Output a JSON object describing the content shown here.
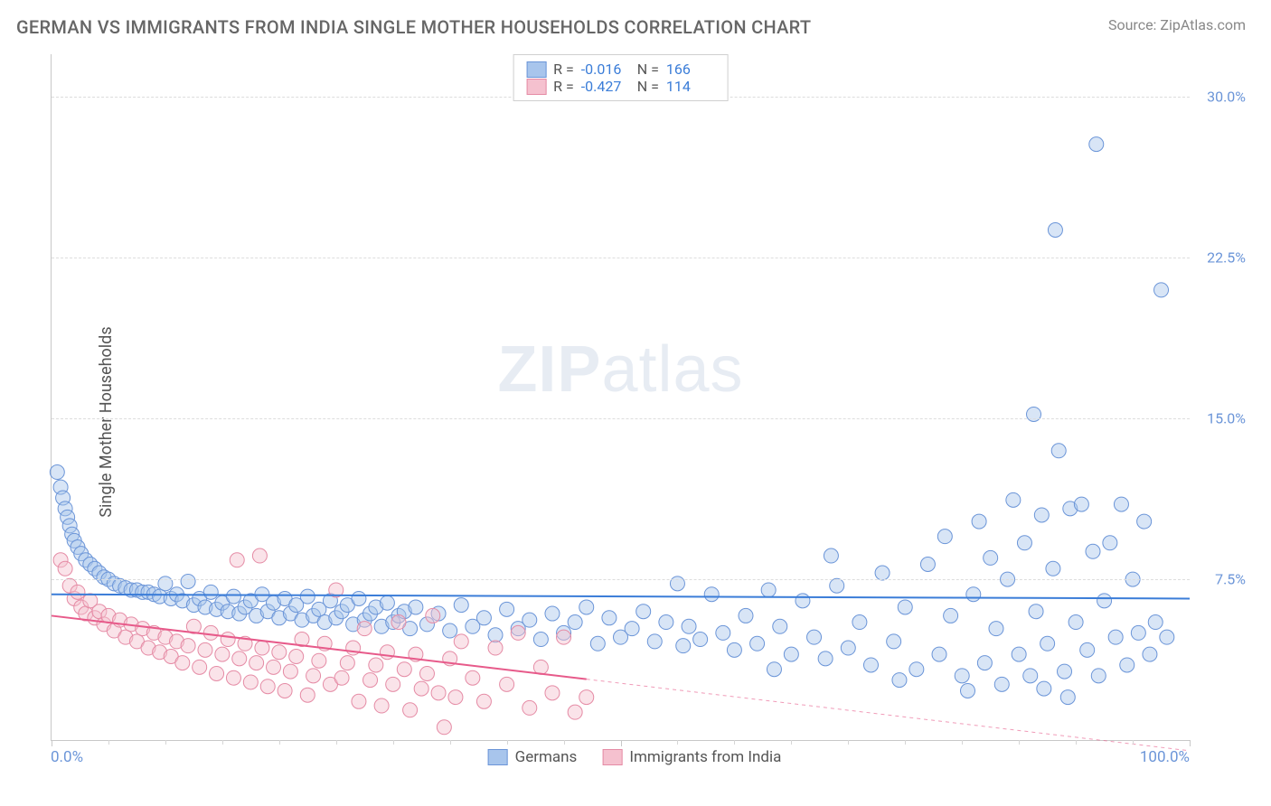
{
  "header": {
    "title": "GERMAN VS IMMIGRANTS FROM INDIA SINGLE MOTHER HOUSEHOLDS CORRELATION CHART",
    "source": "Source: ZipAtlas.com"
  },
  "watermark": {
    "zip": "ZIP",
    "atlas": "atlas"
  },
  "ylabel": "Single Mother Households",
  "chart": {
    "type": "scatter",
    "background_color": "#ffffff",
    "grid_color": "#dddddd",
    "grid_dash": true,
    "axis_color": "#c8c8c8",
    "xlim": [
      0,
      100
    ],
    "ylim": [
      0,
      32
    ],
    "x_tick_labels": {
      "left": "0.0%",
      "right": "100.0%"
    },
    "x_tick_label_color": "#6b95d8",
    "y_ticks": [
      7.5,
      15.0,
      22.5,
      30.0
    ],
    "y_tick_labels": [
      "7.5%",
      "15.0%",
      "22.5%",
      "30.0%"
    ],
    "y_tick_label_color": "#6b95d8",
    "x_minor_ticks": [
      0,
      5,
      10,
      15,
      20,
      25,
      30,
      35,
      40,
      45,
      50,
      55,
      60,
      65,
      70,
      75,
      80,
      85,
      90,
      95,
      100
    ],
    "marker_radius": 8,
    "marker_stroke_width": 1,
    "marker_opacity": 0.45,
    "series": [
      {
        "name": "Germans",
        "fill": "#a8c5ec",
        "stroke": "#6b95d8",
        "R": "-0.016",
        "N": "166",
        "trend": {
          "y_at_x0": 6.8,
          "y_at_x100": 6.6,
          "color": "#3b7dd8",
          "width": 2,
          "solid_to_x": 100
        },
        "points": [
          [
            0.5,
            12.5
          ],
          [
            0.8,
            11.8
          ],
          [
            1.0,
            11.3
          ],
          [
            1.2,
            10.8
          ],
          [
            1.4,
            10.4
          ],
          [
            1.6,
            10.0
          ],
          [
            1.8,
            9.6
          ],
          [
            2.0,
            9.3
          ],
          [
            2.3,
            9.0
          ],
          [
            2.6,
            8.7
          ],
          [
            3.0,
            8.4
          ],
          [
            3.4,
            8.2
          ],
          [
            3.8,
            8.0
          ],
          [
            4.2,
            7.8
          ],
          [
            4.6,
            7.6
          ],
          [
            5.0,
            7.5
          ],
          [
            5.5,
            7.3
          ],
          [
            6.0,
            7.2
          ],
          [
            6.5,
            7.1
          ],
          [
            7.0,
            7.0
          ],
          [
            7.5,
            7.0
          ],
          [
            8.0,
            6.9
          ],
          [
            8.5,
            6.9
          ],
          [
            9.0,
            6.8
          ],
          [
            9.5,
            6.7
          ],
          [
            10.0,
            7.3
          ],
          [
            10.5,
            6.6
          ],
          [
            11.0,
            6.8
          ],
          [
            11.5,
            6.5
          ],
          [
            12.0,
            7.4
          ],
          [
            12.5,
            6.3
          ],
          [
            13.0,
            6.6
          ],
          [
            13.5,
            6.2
          ],
          [
            14.0,
            6.9
          ],
          [
            14.5,
            6.1
          ],
          [
            15.0,
            6.4
          ],
          [
            15.5,
            6.0
          ],
          [
            16.0,
            6.7
          ],
          [
            16.5,
            5.9
          ],
          [
            17.0,
            6.2
          ],
          [
            17.5,
            6.5
          ],
          [
            18.0,
            5.8
          ],
          [
            18.5,
            6.8
          ],
          [
            19.0,
            6.0
          ],
          [
            19.5,
            6.4
          ],
          [
            20.0,
            5.7
          ],
          [
            20.5,
            6.6
          ],
          [
            21.0,
            5.9
          ],
          [
            21.5,
            6.3
          ],
          [
            22.0,
            5.6
          ],
          [
            22.5,
            6.7
          ],
          [
            23.0,
            5.8
          ],
          [
            23.5,
            6.1
          ],
          [
            24.0,
            5.5
          ],
          [
            24.5,
            6.5
          ],
          [
            25.0,
            5.7
          ],
          [
            25.5,
            6.0
          ],
          [
            26.0,
            6.3
          ],
          [
            26.5,
            5.4
          ],
          [
            27.0,
            6.6
          ],
          [
            27.5,
            5.6
          ],
          [
            28.0,
            5.9
          ],
          [
            28.5,
            6.2
          ],
          [
            29.0,
            5.3
          ],
          [
            29.5,
            6.4
          ],
          [
            30.0,
            5.5
          ],
          [
            30.5,
            5.8
          ],
          [
            31.0,
            6.0
          ],
          [
            31.5,
            5.2
          ],
          [
            32.0,
            6.2
          ],
          [
            33.0,
            5.4
          ],
          [
            34.0,
            5.9
          ],
          [
            35.0,
            5.1
          ],
          [
            36.0,
            6.3
          ],
          [
            37.0,
            5.3
          ],
          [
            38.0,
            5.7
          ],
          [
            39.0,
            4.9
          ],
          [
            40.0,
            6.1
          ],
          [
            41.0,
            5.2
          ],
          [
            42.0,
            5.6
          ],
          [
            43.0,
            4.7
          ],
          [
            44.0,
            5.9
          ],
          [
            45.0,
            5.0
          ],
          [
            46.0,
            5.5
          ],
          [
            47.0,
            6.2
          ],
          [
            48.0,
            4.5
          ],
          [
            49.0,
            5.7
          ],
          [
            50.0,
            4.8
          ],
          [
            51.0,
            5.2
          ],
          [
            52.0,
            6.0
          ],
          [
            53.0,
            4.6
          ],
          [
            54.0,
            5.5
          ],
          [
            55.0,
            7.3
          ],
          [
            55.5,
            4.4
          ],
          [
            56.0,
            5.3
          ],
          [
            57.0,
            4.7
          ],
          [
            58.0,
            6.8
          ],
          [
            59.0,
            5.0
          ],
          [
            60.0,
            4.2
          ],
          [
            61.0,
            5.8
          ],
          [
            62.0,
            4.5
          ],
          [
            63.0,
            7.0
          ],
          [
            63.5,
            3.3
          ],
          [
            64.0,
            5.3
          ],
          [
            65.0,
            4.0
          ],
          [
            66.0,
            6.5
          ],
          [
            67.0,
            4.8
          ],
          [
            68.0,
            3.8
          ],
          [
            68.5,
            8.6
          ],
          [
            69.0,
            7.2
          ],
          [
            70.0,
            4.3
          ],
          [
            71.0,
            5.5
          ],
          [
            72.0,
            3.5
          ],
          [
            73.0,
            7.8
          ],
          [
            74.0,
            4.6
          ],
          [
            74.5,
            2.8
          ],
          [
            75.0,
            6.2
          ],
          [
            76.0,
            3.3
          ],
          [
            77.0,
            8.2
          ],
          [
            78.0,
            4.0
          ],
          [
            78.5,
            9.5
          ],
          [
            79.0,
            5.8
          ],
          [
            80.0,
            3.0
          ],
          [
            80.5,
            2.3
          ],
          [
            81.0,
            6.8
          ],
          [
            81.5,
            10.2
          ],
          [
            82.0,
            3.6
          ],
          [
            82.5,
            8.5
          ],
          [
            83.0,
            5.2
          ],
          [
            83.5,
            2.6
          ],
          [
            84.0,
            7.5
          ],
          [
            84.5,
            11.2
          ],
          [
            85.0,
            4.0
          ],
          [
            85.5,
            9.2
          ],
          [
            86.0,
            3.0
          ],
          [
            86.3,
            15.2
          ],
          [
            86.5,
            6.0
          ],
          [
            87.0,
            10.5
          ],
          [
            87.2,
            2.4
          ],
          [
            87.5,
            4.5
          ],
          [
            88.0,
            8.0
          ],
          [
            88.2,
            23.8
          ],
          [
            88.5,
            13.5
          ],
          [
            89.0,
            3.2
          ],
          [
            89.3,
            2.0
          ],
          [
            89.5,
            10.8
          ],
          [
            90.0,
            5.5
          ],
          [
            90.5,
            11.0
          ],
          [
            91.0,
            4.2
          ],
          [
            91.5,
            8.8
          ],
          [
            91.8,
            27.8
          ],
          [
            92.0,
            3.0
          ],
          [
            92.5,
            6.5
          ],
          [
            93.0,
            9.2
          ],
          [
            93.5,
            4.8
          ],
          [
            94.0,
            11.0
          ],
          [
            94.5,
            3.5
          ],
          [
            95.0,
            7.5
          ],
          [
            95.5,
            5.0
          ],
          [
            96.0,
            10.2
          ],
          [
            96.5,
            4.0
          ],
          [
            97.0,
            5.5
          ],
          [
            97.5,
            21.0
          ],
          [
            98.0,
            4.8
          ]
        ]
      },
      {
        "name": "Immigrants from India",
        "fill": "#f5c1cf",
        "stroke": "#e58ba5",
        "R": "-0.427",
        "N": "114",
        "trend": {
          "y_at_x0": 5.8,
          "y_at_x100": -0.5,
          "color": "#e75a8a",
          "width": 2,
          "solid_to_x": 47
        },
        "points": [
          [
            0.8,
            8.4
          ],
          [
            1.2,
            8.0
          ],
          [
            1.6,
            7.2
          ],
          [
            2.0,
            6.6
          ],
          [
            2.3,
            6.9
          ],
          [
            2.6,
            6.2
          ],
          [
            3.0,
            5.9
          ],
          [
            3.4,
            6.5
          ],
          [
            3.8,
            5.7
          ],
          [
            4.2,
            6.0
          ],
          [
            4.6,
            5.4
          ],
          [
            5.0,
            5.8
          ],
          [
            5.5,
            5.1
          ],
          [
            6.0,
            5.6
          ],
          [
            6.5,
            4.8
          ],
          [
            7.0,
            5.4
          ],
          [
            7.5,
            4.6
          ],
          [
            8.0,
            5.2
          ],
          [
            8.5,
            4.3
          ],
          [
            9.0,
            5.0
          ],
          [
            9.5,
            4.1
          ],
          [
            10.0,
            4.8
          ],
          [
            10.5,
            3.9
          ],
          [
            11.0,
            4.6
          ],
          [
            11.5,
            3.6
          ],
          [
            12.0,
            4.4
          ],
          [
            12.5,
            5.3
          ],
          [
            13.0,
            3.4
          ],
          [
            13.5,
            4.2
          ],
          [
            14.0,
            5.0
          ],
          [
            14.5,
            3.1
          ],
          [
            15.0,
            4.0
          ],
          [
            15.5,
            4.7
          ],
          [
            16.0,
            2.9
          ],
          [
            16.3,
            8.4
          ],
          [
            16.5,
            3.8
          ],
          [
            17.0,
            4.5
          ],
          [
            17.5,
            2.7
          ],
          [
            18.0,
            3.6
          ],
          [
            18.3,
            8.6
          ],
          [
            18.5,
            4.3
          ],
          [
            19.0,
            2.5
          ],
          [
            19.5,
            3.4
          ],
          [
            20.0,
            4.1
          ],
          [
            20.5,
            2.3
          ],
          [
            21.0,
            3.2
          ],
          [
            21.5,
            3.9
          ],
          [
            22.0,
            4.7
          ],
          [
            22.5,
            2.1
          ],
          [
            23.0,
            3.0
          ],
          [
            23.5,
            3.7
          ],
          [
            24.0,
            4.5
          ],
          [
            24.5,
            2.6
          ],
          [
            25.0,
            7.0
          ],
          [
            25.5,
            2.9
          ],
          [
            26.0,
            3.6
          ],
          [
            26.5,
            4.3
          ],
          [
            27.0,
            1.8
          ],
          [
            27.5,
            5.2
          ],
          [
            28.0,
            2.8
          ],
          [
            28.5,
            3.5
          ],
          [
            29.0,
            1.6
          ],
          [
            29.5,
            4.1
          ],
          [
            30.0,
            2.6
          ],
          [
            30.5,
            5.5
          ],
          [
            31.0,
            3.3
          ],
          [
            31.5,
            1.4
          ],
          [
            32.0,
            4.0
          ],
          [
            32.5,
            2.4
          ],
          [
            33.0,
            3.1
          ],
          [
            33.5,
            5.8
          ],
          [
            34.0,
            2.2
          ],
          [
            34.5,
            0.6
          ],
          [
            35.0,
            3.8
          ],
          [
            35.5,
            2.0
          ],
          [
            36.0,
            4.6
          ],
          [
            37.0,
            2.9
          ],
          [
            38.0,
            1.8
          ],
          [
            39.0,
            4.3
          ],
          [
            40.0,
            2.6
          ],
          [
            41.0,
            5.0
          ],
          [
            42.0,
            1.5
          ],
          [
            43.0,
            3.4
          ],
          [
            44.0,
            2.2
          ],
          [
            45.0,
            4.8
          ],
          [
            46.0,
            1.3
          ],
          [
            47.0,
            2.0
          ]
        ]
      }
    ],
    "legend_top": {
      "r_label": "R =",
      "n_label": "N ="
    },
    "legend_bottom": {
      "series1": "Germans",
      "series2": "Immigrants from India"
    }
  }
}
